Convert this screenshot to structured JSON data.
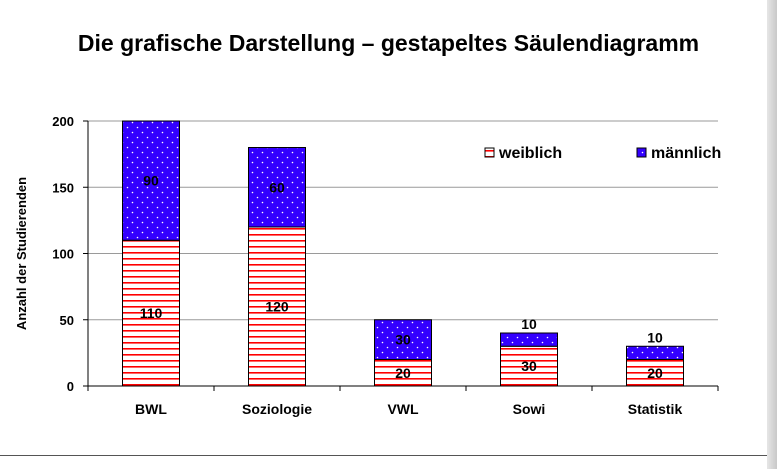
{
  "title": "Die grafische Darstellung – gestapeltes Säulendiagramm",
  "chart_data": {
    "type": "bar",
    "stacked": true,
    "categories": [
      "BWL",
      "Soziologie",
      "VWL",
      "Sowi",
      "Statistik"
    ],
    "series": [
      {
        "name": "weiblich",
        "values": [
          110,
          120,
          20,
          30,
          20
        ],
        "color": "#ff0000",
        "pattern": "horizontal-stripes"
      },
      {
        "name": "männlich",
        "values": [
          90,
          60,
          30,
          10,
          10
        ],
        "color": "#3300ff",
        "pattern": "dots"
      }
    ],
    "xlabel": "",
    "ylabel": "Anzahl der Studierenden",
    "ylim": [
      0,
      200
    ],
    "yticks": [
      "0",
      "50",
      "100",
      "150",
      "200"
    ],
    "grid": true,
    "legend_position": "top-right"
  }
}
